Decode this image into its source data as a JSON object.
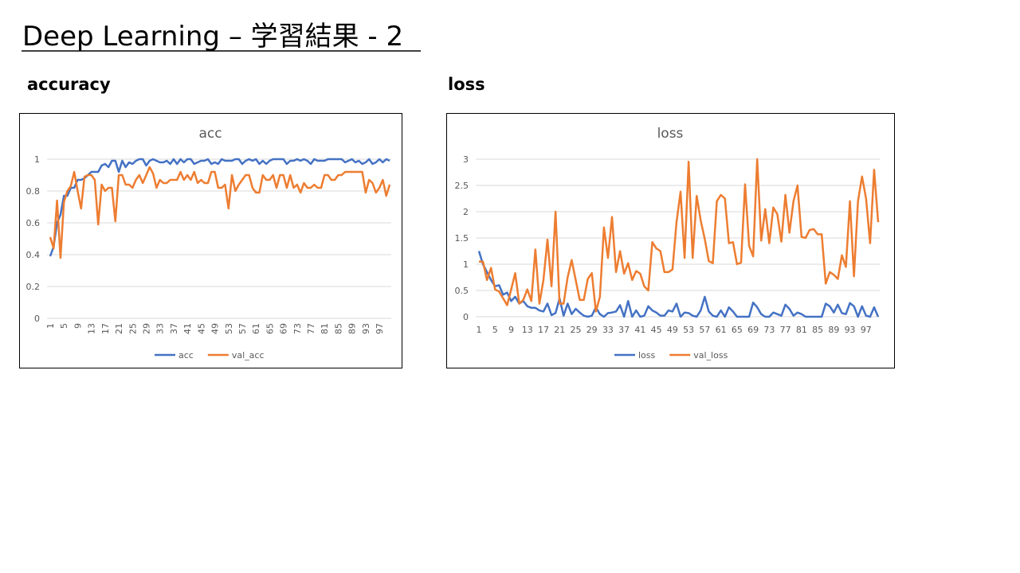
{
  "title": "Deep Learning – 学習結果 - 2",
  "headings": [
    "accuracy",
    "loss"
  ],
  "chart_data": [
    {
      "type": "line",
      "title": "acc",
      "categories": [
        1,
        null,
        null,
        null,
        5,
        null,
        null,
        null,
        9,
        null,
        null,
        null,
        13,
        null,
        null,
        null,
        17,
        null,
        null,
        null,
        21,
        null,
        null,
        null,
        25,
        null,
        null,
        null,
        29,
        null,
        null,
        null,
        33,
        null,
        null,
        null,
        37,
        null,
        null,
        null,
        41,
        null,
        null,
        null,
        45,
        null,
        null,
        null,
        49,
        null,
        null,
        null,
        53,
        null,
        null,
        null,
        57,
        null,
        null,
        null,
        61,
        null,
        null,
        null,
        65,
        null,
        null,
        null,
        69,
        null,
        null,
        null,
        73,
        null,
        null,
        null,
        77,
        null,
        null,
        null,
        81,
        null,
        null,
        null,
        85,
        null,
        null,
        null,
        89,
        null,
        null,
        null,
        93,
        null,
        null,
        null,
        97,
        null,
        null,
        null
      ],
      "ylim": [
        0,
        1
      ],
      "yticks": [
        0,
        0.2,
        0.4,
        0.6,
        0.8,
        1
      ],
      "grid": true,
      "legend": "bottom",
      "series": [
        {
          "name": "acc",
          "color": "#4472c4",
          "values": [
            0.39,
            0.45,
            0.6,
            0.65,
            0.77,
            0.77,
            0.82,
            0.82,
            0.87,
            0.87,
            0.88,
            0.9,
            0.92,
            0.92,
            0.92,
            0.96,
            0.97,
            0.95,
            0.99,
            0.99,
            0.92,
            0.99,
            0.95,
            0.98,
            0.97,
            0.99,
            1,
            1,
            0.96,
            0.99,
            1,
            0.99,
            0.98,
            0.98,
            0.99,
            0.97,
            1,
            0.97,
            1,
            0.98,
            1,
            1,
            0.97,
            0.98,
            0.99,
            0.99,
            1,
            0.97,
            0.98,
            0.97,
            1,
            0.99,
            0.99,
            0.99,
            1,
            1,
            0.97,
            0.99,
            1,
            0.99,
            1,
            0.97,
            0.99,
            0.97,
            0.99,
            1,
            1,
            1,
            1,
            0.97,
            0.99,
            0.99,
            1,
            0.99,
            1,
            0.99,
            0.97,
            1,
            0.99,
            0.99,
            0.99,
            1,
            1,
            1,
            1,
            1,
            0.98,
            0.99,
            1,
            0.98,
            0.99,
            0.97,
            0.98,
            1,
            0.97,
            0.98,
            1,
            0.98,
            1,
            0.99
          ]
        },
        {
          "name": "val_acc",
          "color": "#ed7d31",
          "values": [
            0.51,
            0.44,
            0.74,
            0.38,
            0.73,
            0.8,
            0.83,
            0.92,
            0.8,
            0.69,
            0.89,
            0.9,
            0.9,
            0.87,
            0.59,
            0.84,
            0.8,
            0.82,
            0.82,
            0.61,
            0.9,
            0.9,
            0.84,
            0.84,
            0.82,
            0.87,
            0.9,
            0.85,
            0.9,
            0.95,
            0.91,
            0.82,
            0.87,
            0.85,
            0.85,
            0.87,
            0.87,
            0.87,
            0.92,
            0.87,
            0.9,
            0.87,
            0.92,
            0.85,
            0.87,
            0.85,
            0.85,
            0.92,
            0.92,
            0.82,
            0.82,
            0.84,
            0.69,
            0.9,
            0.8,
            0.84,
            0.87,
            0.9,
            0.9,
            0.82,
            0.79,
            0.79,
            0.9,
            0.87,
            0.87,
            0.9,
            0.82,
            0.9,
            0.9,
            0.82,
            0.9,
            0.82,
            0.84,
            0.79,
            0.85,
            0.82,
            0.82,
            0.84,
            0.82,
            0.82,
            0.9,
            0.9,
            0.87,
            0.87,
            0.9,
            0.9,
            0.92,
            0.92,
            0.92,
            0.92,
            0.92,
            0.92,
            0.79,
            0.87,
            0.85,
            0.79,
            0.82,
            0.87,
            0.77,
            0.84
          ]
        }
      ]
    },
    {
      "type": "line",
      "title": "loss",
      "categories": [
        1,
        null,
        null,
        null,
        5,
        null,
        null,
        null,
        9,
        null,
        null,
        null,
        13,
        null,
        null,
        null,
        17,
        null,
        null,
        null,
        21,
        null,
        null,
        null,
        25,
        null,
        null,
        null,
        29,
        null,
        null,
        null,
        33,
        null,
        null,
        null,
        37,
        null,
        null,
        null,
        41,
        null,
        null,
        null,
        45,
        null,
        null,
        null,
        49,
        null,
        null,
        null,
        53,
        null,
        null,
        null,
        57,
        null,
        null,
        null,
        61,
        null,
        null,
        null,
        65,
        null,
        null,
        null,
        69,
        null,
        null,
        null,
        73,
        null,
        null,
        null,
        77,
        null,
        null,
        null,
        81,
        null,
        null,
        null,
        85,
        null,
        null,
        null,
        89,
        null,
        null,
        null,
        93,
        null,
        null,
        null,
        97,
        null,
        null,
        null
      ],
      "ylim": [
        0,
        3
      ],
      "yticks": [
        0,
        0.5,
        1,
        1.5,
        2,
        2.5,
        3
      ],
      "grid": true,
      "legend": "bottom",
      "series": [
        {
          "name": "loss",
          "color": "#4472c4",
          "values": [
            1.25,
            1.0,
            0.85,
            0.7,
            0.58,
            0.6,
            0.42,
            0.46,
            0.3,
            0.38,
            0.25,
            0.3,
            0.2,
            0.17,
            0.17,
            0.12,
            0.1,
            0.25,
            0.03,
            0.07,
            0.35,
            0.02,
            0.25,
            0.05,
            0.15,
            0.08,
            0.02,
            0.0,
            0.02,
            0.18,
            0.05,
            0.0,
            0.07,
            0.08,
            0.1,
            0.22,
            0.0,
            0.3,
            0.0,
            0.12,
            0.0,
            0.02,
            0.2,
            0.12,
            0.08,
            0.02,
            0.02,
            0.12,
            0.1,
            0.25,
            0.0,
            0.08,
            0.07,
            0.02,
            0.0,
            0.12,
            0.38,
            0.1,
            0.02,
            0.0,
            0.12,
            0.0,
            0.18,
            0.1,
            0.0,
            0.0,
            0.0,
            0.0,
            0.27,
            0.18,
            0.05,
            0.0,
            0.0,
            0.08,
            0.05,
            0.02,
            0.23,
            0.15,
            0.02,
            0.08,
            0.05,
            0.0,
            0.0,
            0.0,
            0.0,
            0.0,
            0.25,
            0.2,
            0.08,
            0.23,
            0.07,
            0.05,
            0.26,
            0.2,
            0.0,
            0.2,
            0.02,
            0.0,
            0.18,
            0.0
          ]
        },
        {
          "name": "val_loss",
          "color": "#ed7d31",
          "values": [
            1.05,
            1.05,
            0.7,
            0.93,
            0.52,
            0.48,
            0.35,
            0.22,
            0.52,
            0.83,
            0.25,
            0.32,
            0.52,
            0.3,
            1.28,
            0.25,
            0.7,
            1.47,
            0.58,
            2.0,
            0.25,
            0.25,
            0.75,
            1.08,
            0.7,
            0.32,
            0.32,
            0.72,
            0.83,
            0.1,
            0.38,
            1.7,
            1.12,
            1.9,
            0.85,
            1.25,
            0.82,
            1.02,
            0.7,
            0.87,
            0.82,
            0.58,
            0.5,
            1.42,
            1.3,
            1.25,
            0.85,
            0.85,
            0.9,
            1.8,
            2.38,
            1.12,
            2.95,
            1.12,
            2.3,
            1.83,
            1.48,
            1.06,
            1.02,
            2.2,
            2.32,
            2.25,
            1.4,
            1.42,
            1.0,
            1.03,
            2.52,
            1.35,
            1.15,
            3.0,
            1.45,
            2.05,
            1.4,
            2.08,
            1.95,
            1.43,
            2.32,
            1.6,
            2.2,
            2.5,
            1.52,
            1.5,
            1.65,
            1.67,
            1.57,
            1.57,
            0.63,
            0.85,
            0.8,
            0.72,
            1.17,
            0.95,
            2.2,
            0.77,
            2.2,
            2.67,
            2.25,
            1.4,
            2.8,
            1.8
          ]
        }
      ]
    }
  ]
}
